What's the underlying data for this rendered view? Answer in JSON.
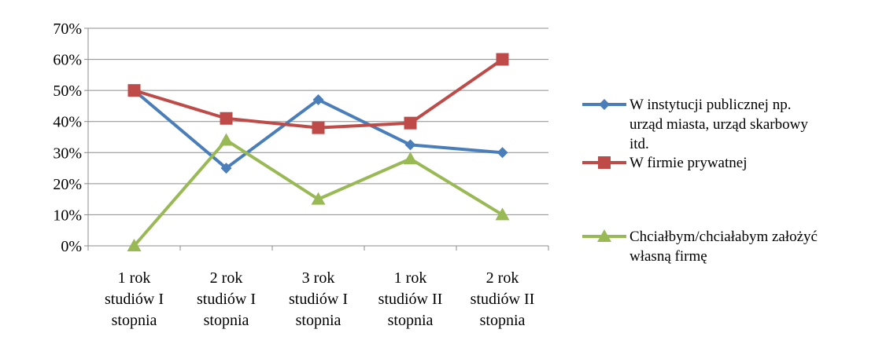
{
  "chart_data": {
    "type": "line",
    "title": "",
    "xlabel": "",
    "ylabel": "",
    "categories": [
      [
        "1 rok",
        "studiów I",
        "stopnia"
      ],
      [
        "2 rok",
        "studiów I",
        "stopnia"
      ],
      [
        "3 rok",
        "studiów I",
        "stopnia"
      ],
      [
        "1 rok",
        "studiów II",
        "stopnia"
      ],
      [
        "2 rok",
        "studiów II",
        "stopnia"
      ]
    ],
    "ylim": [
      0,
      70
    ],
    "yticks": [
      "0%",
      "10%",
      "20%",
      "30%",
      "40%",
      "50%",
      "60%",
      "70%"
    ],
    "grid": true,
    "legend_position": "right",
    "series": [
      {
        "name": "W instytucji publicznej np. urząd miasta, urząd skarbowy itd.",
        "legend_lines": [
          "W instytucji publicznej np.",
          "urząd miasta, urząd skarbowy",
          "itd."
        ],
        "color": "#4a7ebb",
        "marker": "diamond",
        "values": [
          50,
          25,
          47,
          32.5,
          30
        ]
      },
      {
        "name": "W firmie prywatnej",
        "legend_lines": [
          "W firmie prywatnej"
        ],
        "color": "#be4b48",
        "marker": "square",
        "values": [
          50,
          41,
          38,
          39.5,
          60
        ]
      },
      {
        "name": "Chciałbym/chciałabym założyć własną firmę",
        "legend_lines": [
          "Chciałbym/chciałabym założyć",
          "własną firmę"
        ],
        "color": "#98b954",
        "marker": "triangle",
        "values": [
          0,
          34,
          15,
          28,
          10
        ]
      }
    ]
  }
}
